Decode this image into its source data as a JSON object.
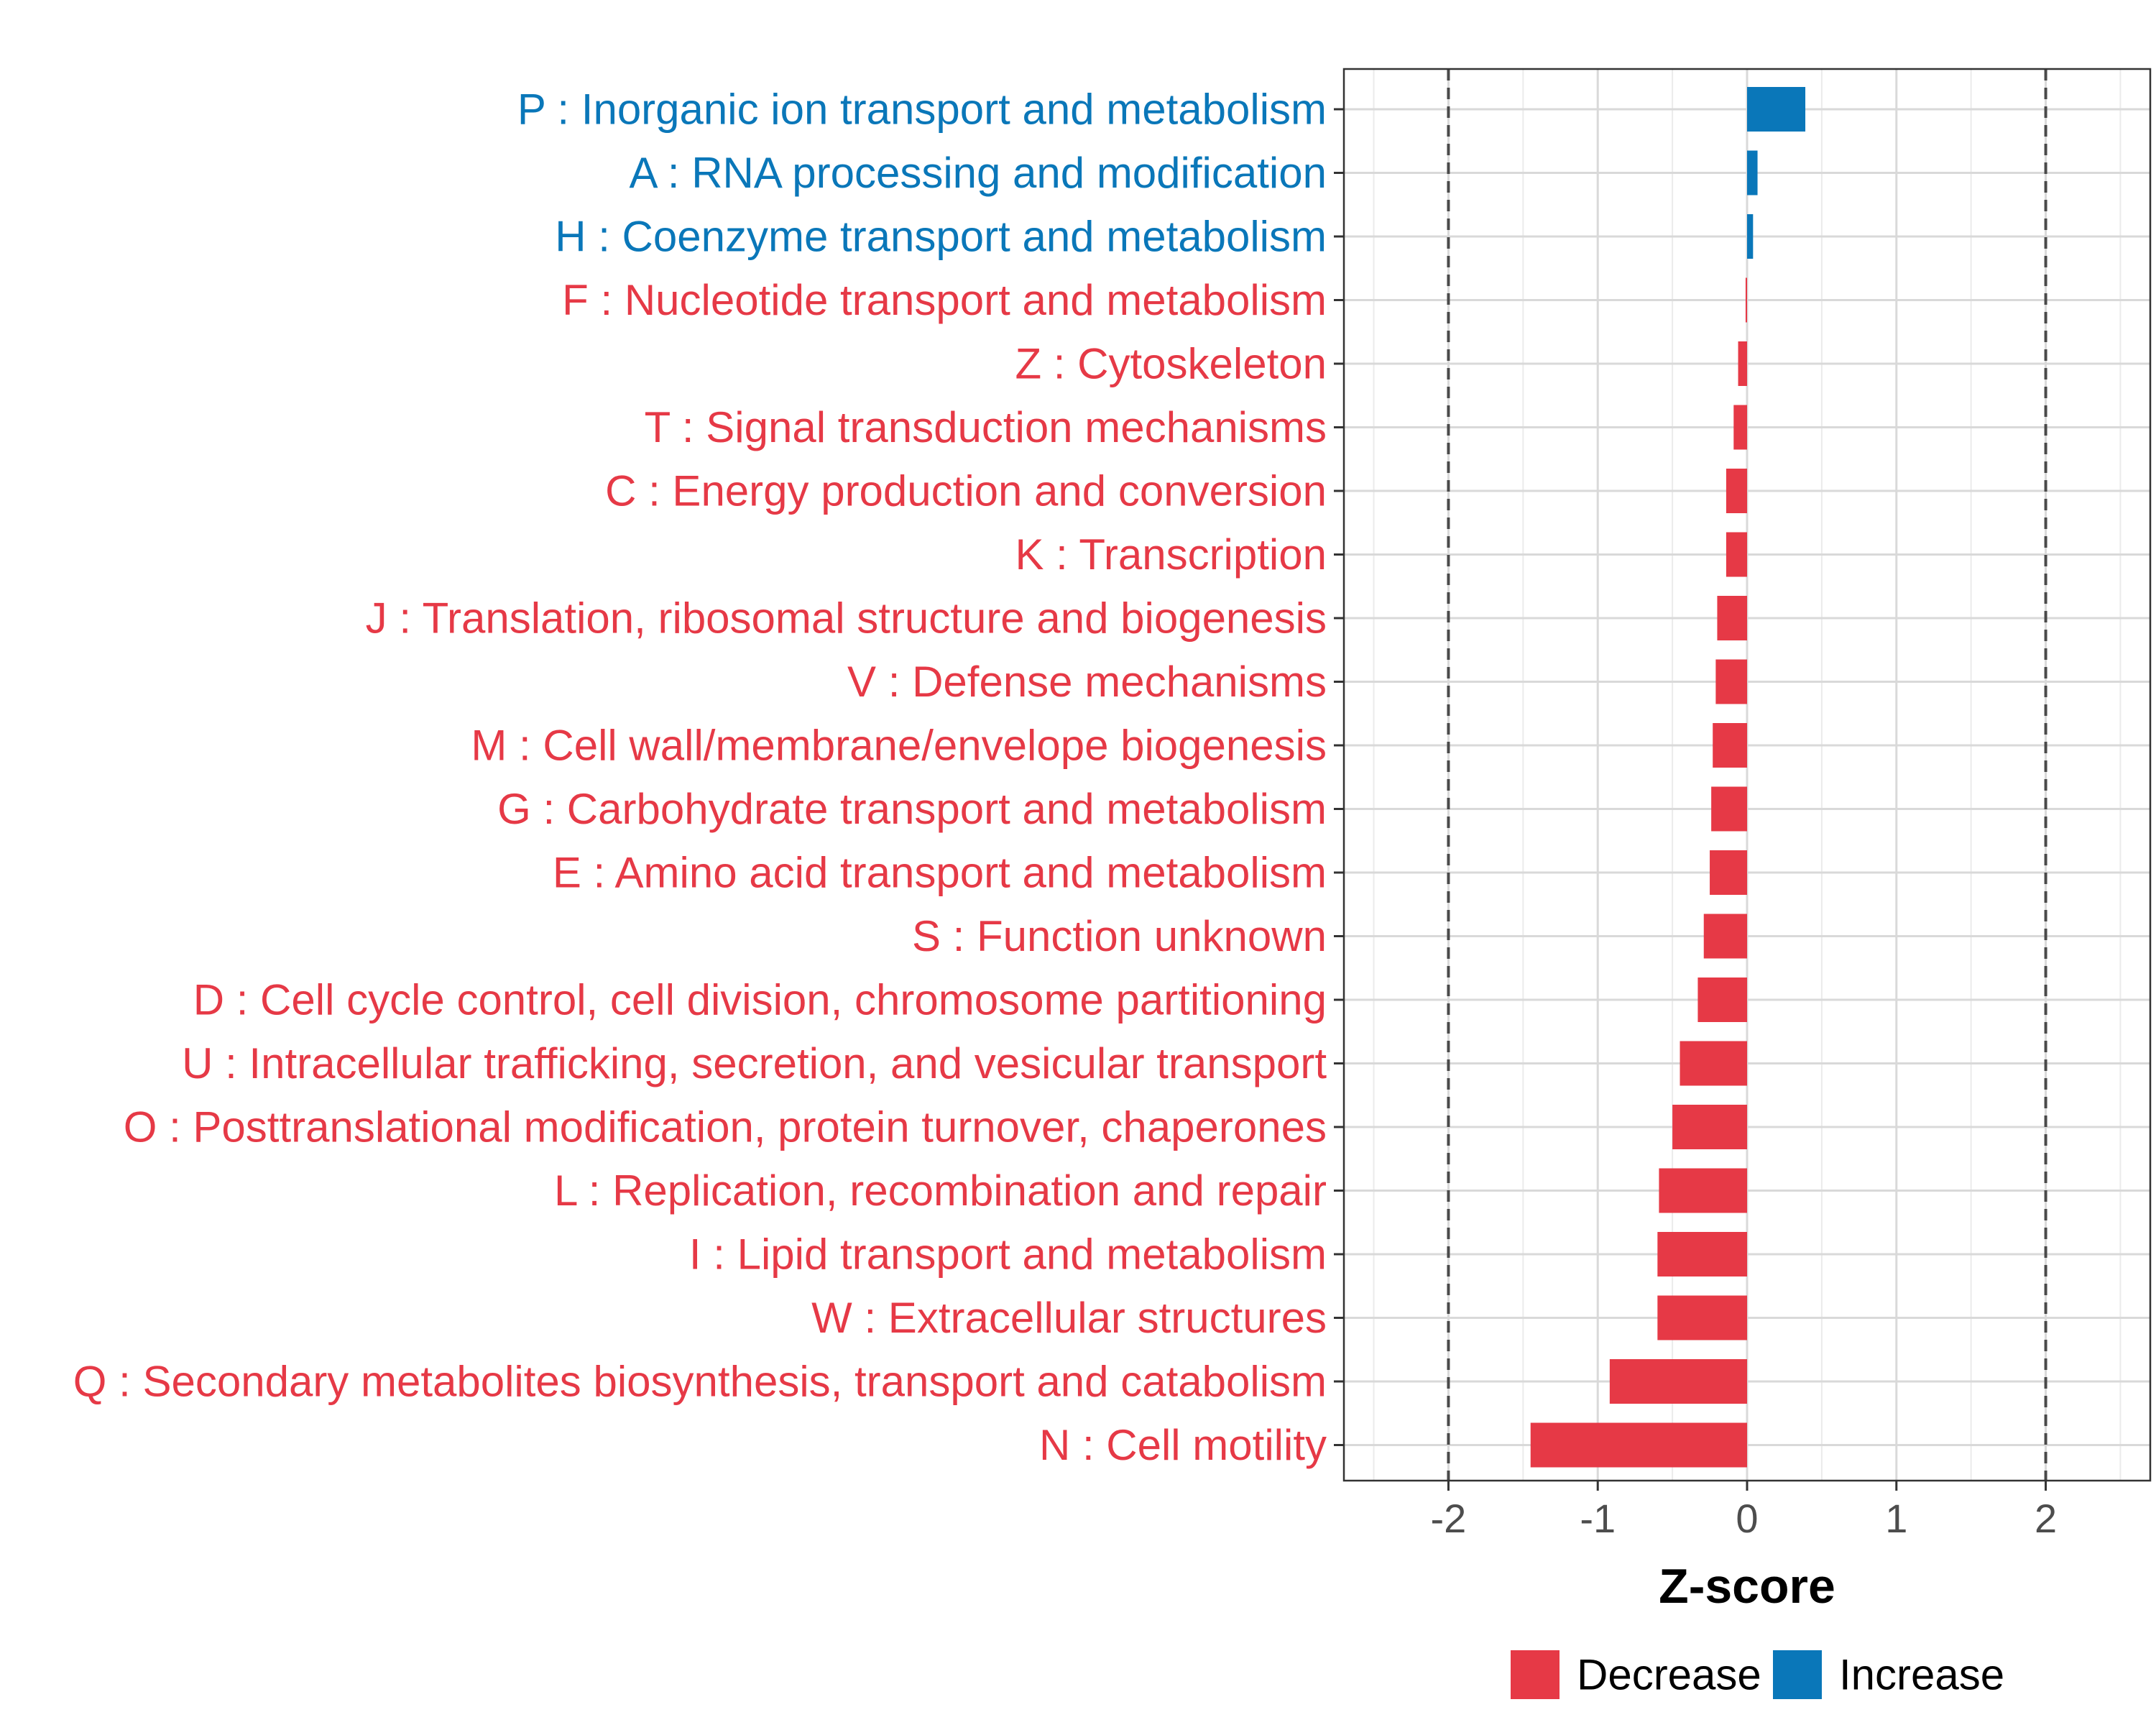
{
  "chart_data": {
    "type": "bar",
    "orientation": "horizontal",
    "xlabel": "Z-score",
    "ylabel": "",
    "xlim": [
      -2.7,
      2.7
    ],
    "x_ticks": [
      -2,
      -1,
      0,
      1,
      2
    ],
    "x_tick_labels": [
      "-2",
      "-1",
      "0",
      "1",
      "2"
    ],
    "reference_lines": [
      -2,
      2
    ],
    "grid": true,
    "colors": {
      "Decrease": "#e63946",
      "Increase": "#0a77b9"
    },
    "categories": [
      "P : Inorganic ion transport and metabolism",
      "A : RNA processing and modification",
      "H : Coenzyme transport and metabolism",
      "F : Nucleotide transport and metabolism",
      "Z : Cytoskeleton",
      "T : Signal transduction mechanisms",
      "C : Energy production and conversion",
      "K : Transcription",
      "J : Translation, ribosomal structure and biogenesis",
      "V : Defense mechanisms",
      "M : Cell wall/membrane/envelope biogenesis",
      "G : Carbohydrate transport and metabolism",
      "E : Amino acid transport and metabolism",
      "S : Function unknown",
      "D : Cell cycle control, cell division, chromosome partitioning",
      "U : Intracellular trafficking, secretion, and vesicular transport",
      "O : Posttranslational modification, protein turnover, chaperones",
      "L : Replication, recombination and repair",
      "I : Lipid transport and metabolism",
      "W : Extracellular structures",
      "Q : Secondary metabolites biosynthesis, transport and catabolism",
      "N : Cell motility"
    ],
    "values": [
      0.39,
      0.07,
      0.04,
      -0.01,
      -0.06,
      -0.09,
      -0.14,
      -0.14,
      -0.2,
      -0.21,
      -0.23,
      -0.24,
      -0.25,
      -0.29,
      -0.33,
      -0.45,
      -0.5,
      -0.59,
      -0.6,
      -0.6,
      -0.92,
      -1.45
    ],
    "groups": [
      "Increase",
      "Increase",
      "Increase",
      "Decrease",
      "Decrease",
      "Decrease",
      "Decrease",
      "Decrease",
      "Decrease",
      "Decrease",
      "Decrease",
      "Decrease",
      "Decrease",
      "Decrease",
      "Decrease",
      "Decrease",
      "Decrease",
      "Decrease",
      "Decrease",
      "Decrease",
      "Decrease",
      "Decrease"
    ],
    "legend": {
      "position": "bottom",
      "entries": [
        {
          "label": "Decrease",
          "color": "#e63946"
        },
        {
          "label": "Increase",
          "color": "#0a77b9"
        }
      ]
    }
  }
}
